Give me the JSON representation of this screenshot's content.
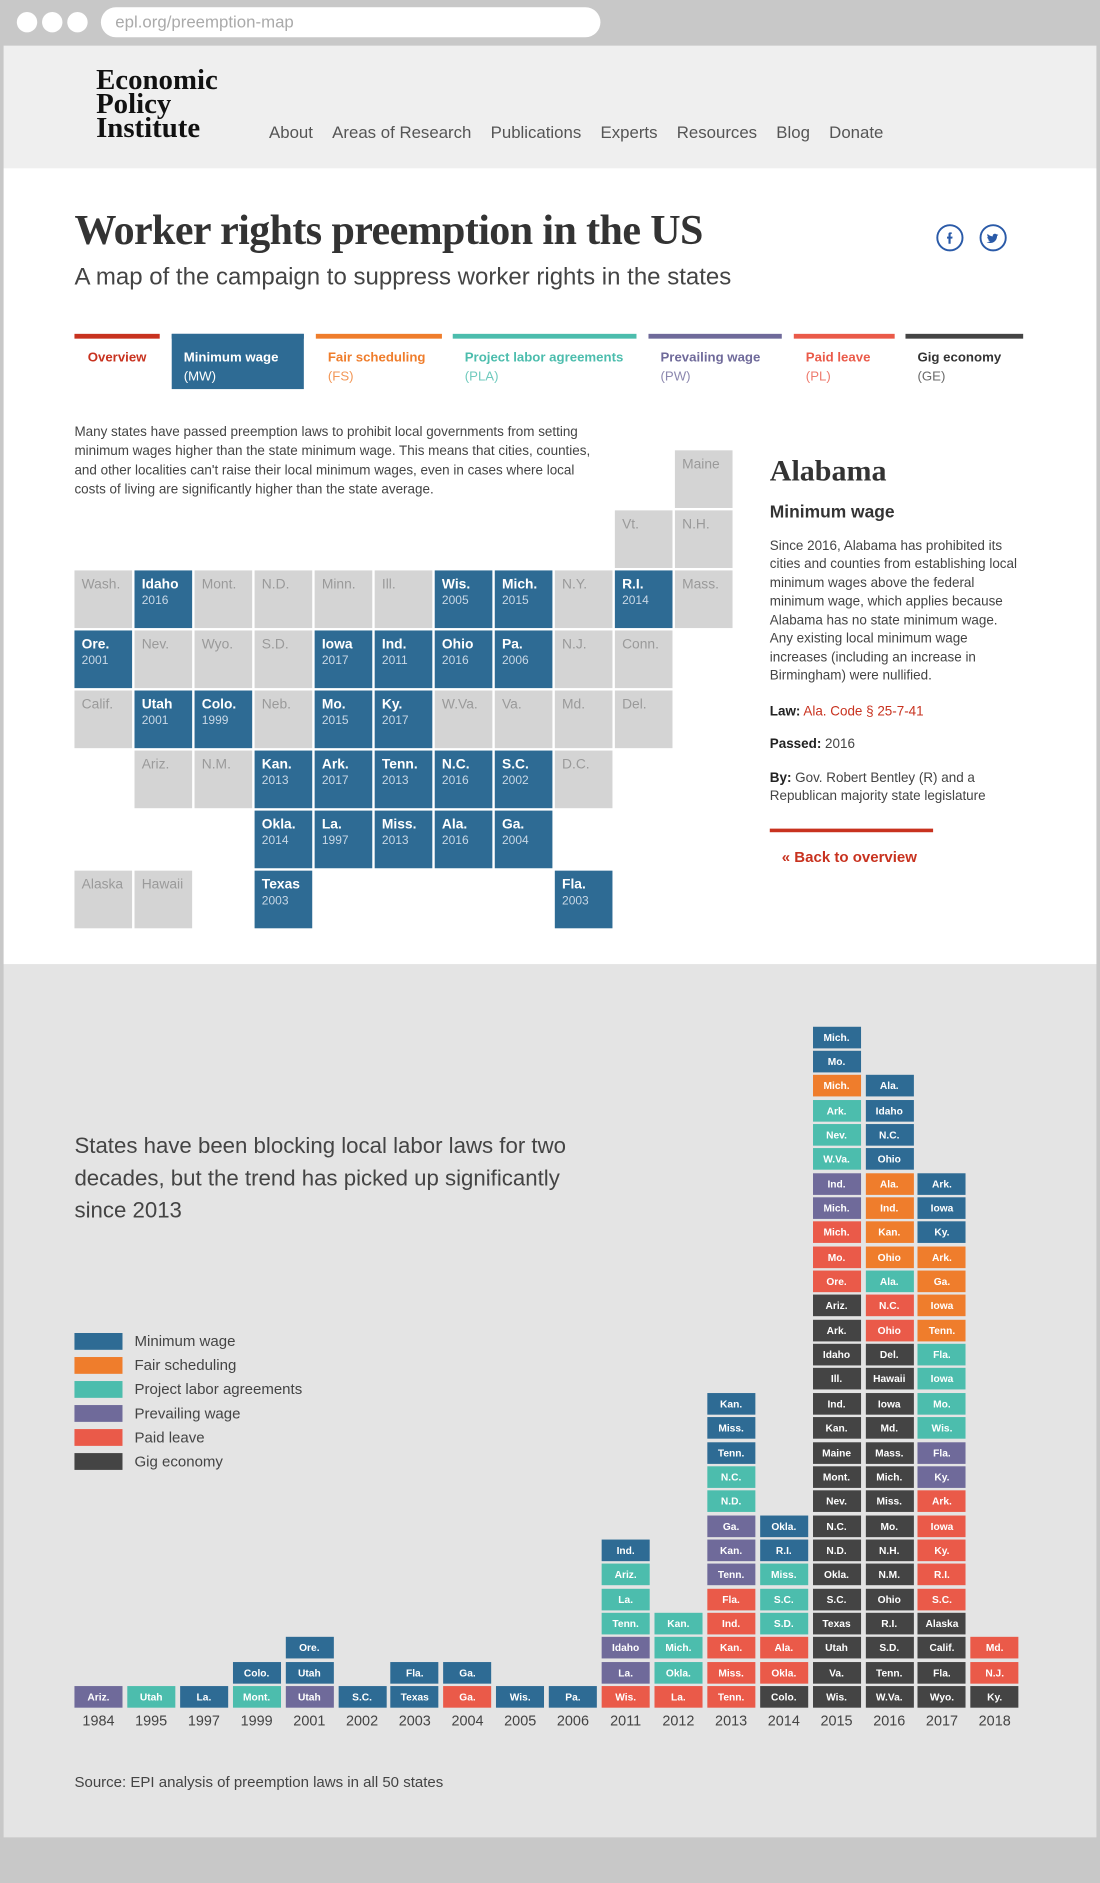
{
  "browser": {
    "url": "epl.org/preemption-map"
  },
  "nav": {
    "logo": [
      "Economic",
      "Policy",
      "Institute"
    ],
    "links": [
      "About",
      "Areas of Research",
      "Publications",
      "Experts",
      "Resources",
      "Blog",
      "Donate"
    ]
  },
  "header": {
    "title": "Worker rights preemption in the US",
    "subtitle": "A map of the campaign to suppress worker rights in the states"
  },
  "tabs": [
    {
      "name": "Overview",
      "color": "#c8321f"
    },
    {
      "name": "Minimum wage",
      "abbr": "(MW)",
      "color": "#2e6b94"
    },
    {
      "name": "Fair scheduling",
      "abbr": "(FS)",
      "color": "#ef7d2c"
    },
    {
      "name": "Project labor agreements",
      "abbr": "(PLA)",
      "color": "#4cbdad"
    },
    {
      "name": "Prevailing wage",
      "abbr": "(PW)",
      "color": "#6f6a9a"
    },
    {
      "name": "Paid leave",
      "abbr": "(PL)",
      "color": "#ea5a49"
    },
    {
      "name": "Gig economy",
      "abbr": "(GE)",
      "color": "#444444"
    }
  ],
  "map": {
    "intro": "Many states have passed preemption laws to prohibit local governments from setting minimum wages higher than the state minimum wage. This means that cities, counties, and other localities can't raise their local minimum wages, even in cases where local costs of living are significantly higher than the state average.",
    "rows": [
      [
        null,
        null,
        null,
        null,
        null,
        null,
        null,
        null,
        null,
        null,
        [
          "Maine"
        ]
      ],
      [
        null,
        null,
        null,
        null,
        null,
        null,
        null,
        null,
        null,
        [
          "Vt."
        ],
        [
          "N.H."
        ]
      ],
      [
        [
          "Wash."
        ],
        [
          "Idaho",
          2016
        ],
        [
          "Mont."
        ],
        [
          "N.D."
        ],
        [
          "Minn."
        ],
        [
          "Ill."
        ],
        [
          "Wis.",
          2005
        ],
        [
          "Mich.",
          2015
        ],
        [
          "N.Y."
        ],
        [
          "R.I.",
          2014
        ],
        [
          "Mass."
        ]
      ],
      [
        [
          "Ore.",
          2001
        ],
        [
          "Nev."
        ],
        [
          "Wyo."
        ],
        [
          "S.D."
        ],
        [
          "Iowa",
          2017
        ],
        [
          "Ind.",
          2011
        ],
        [
          "Ohio",
          2016
        ],
        [
          "Pa.",
          2006
        ],
        [
          "N.J."
        ],
        [
          "Conn."
        ]
      ],
      [
        [
          "Calif."
        ],
        [
          "Utah",
          2001
        ],
        [
          "Colo.",
          1999
        ],
        [
          "Neb."
        ],
        [
          "Mo.",
          2015
        ],
        [
          "Ky.",
          2017
        ],
        [
          "W.Va."
        ],
        [
          "Va."
        ],
        [
          "Md."
        ],
        [
          "Del."
        ]
      ],
      [
        null,
        [
          "Ariz."
        ],
        [
          "N.M."
        ],
        [
          "Kan.",
          2013
        ],
        [
          "Ark.",
          2017
        ],
        [
          "Tenn.",
          2013
        ],
        [
          "N.C.",
          2016
        ],
        [
          "S.C.",
          2002
        ],
        [
          "D.C."
        ]
      ],
      [
        null,
        null,
        null,
        [
          "Okla.",
          2014
        ],
        [
          "La.",
          1997
        ],
        [
          "Miss.",
          2013
        ],
        [
          "Ala.",
          2016
        ],
        [
          "Ga.",
          2004
        ]
      ],
      [
        [
          "Alaska"
        ],
        [
          "Hawaii"
        ],
        null,
        [
          "Texas",
          2003
        ],
        null,
        null,
        null,
        null,
        [
          "Fla.",
          2003
        ]
      ]
    ]
  },
  "detail": {
    "state": "Alabama",
    "policy": "Minimum wage",
    "text": "Since 2016, Alabama has prohibited its cities and counties from establishing local minimum wages above the federal minimum wage, which applies because Alabama has no state minimum wage. Any existing local minimum wage increases (including an increase in Birmingham) were nullified.",
    "law_label": "Law:",
    "law": "Ala. Code § 25-7-41",
    "passed_label": "Passed:",
    "passed": "2016",
    "by_label": "By:",
    "by": "Gov. Robert Bentley (R) and a Republican majority state legislature",
    "back": "« Back to overview"
  },
  "chart_data": {
    "type": "tile-stack",
    "title": "States have been blocking local labor laws for two decades, but the trend has picked up significantly since 2013",
    "source": "Source: EPI analysis of preemption laws in all 50 states",
    "series": [
      {
        "name": "Minimum wage",
        "color": "#2e6b94"
      },
      {
        "name": "Fair scheduling",
        "color": "#ef7d2c"
      },
      {
        "name": "Project labor agreements",
        "color": "#4cbdad"
      },
      {
        "name": "Prevailing wage",
        "color": "#6f6a9a"
      },
      {
        "name": "Paid leave",
        "color": "#ea5a49"
      },
      {
        "name": "Gig economy",
        "color": "#444444"
      }
    ],
    "categories": [
      "1984",
      "1995",
      "1997",
      "1999",
      "2001",
      "2002",
      "2003",
      "2004",
      "2005",
      "2006",
      "2011",
      "2012",
      "2013",
      "2014",
      "2015",
      "2016",
      "2017",
      "2018"
    ],
    "stacks": [
      [
        [
          "Ariz.",
          3
        ]
      ],
      [
        [
          "Utah",
          2
        ]
      ],
      [
        [
          "La.",
          0
        ]
      ],
      [
        [
          "Mont.",
          2
        ],
        [
          "Colo.",
          0
        ]
      ],
      [
        [
          "Utah",
          3
        ],
        [
          "Utah",
          0
        ],
        [
          "Ore.",
          0
        ]
      ],
      [
        [
          "S.C.",
          0
        ]
      ],
      [
        [
          "Texas",
          0
        ],
        [
          "Fla.",
          0
        ]
      ],
      [
        [
          "Ga.",
          4
        ],
        [
          "Ga.",
          0
        ]
      ],
      [
        [
          "Wis.",
          0
        ]
      ],
      [
        [
          "Pa.",
          0
        ]
      ],
      [
        [
          "Wis.",
          4
        ],
        [
          "La.",
          3
        ],
        [
          "Idaho",
          3
        ],
        [
          "Tenn.",
          2
        ],
        [
          "La.",
          2
        ],
        [
          "Ariz.",
          2
        ],
        [
          "Ind.",
          0
        ]
      ],
      [
        [
          "La.",
          4
        ],
        [
          "Okla.",
          2
        ],
        [
          "Mich.",
          2
        ],
        [
          "Kan.",
          2
        ]
      ],
      [
        [
          "Tenn.",
          4
        ],
        [
          "Miss.",
          4
        ],
        [
          "Kan.",
          4
        ],
        [
          "Ind.",
          4
        ],
        [
          "Fla.",
          4
        ],
        [
          "Tenn.",
          3
        ],
        [
          "Kan.",
          3
        ],
        [
          "Ga.",
          3
        ],
        [
          "N.D.",
          2
        ],
        [
          "N.C.",
          2
        ],
        [
          "Tenn.",
          0
        ],
        [
          "Miss.",
          0
        ],
        [
          "Kan.",
          0
        ]
      ],
      [
        [
          "Colo.",
          5
        ],
        [
          "Okla.",
          4
        ],
        [
          "Ala.",
          4
        ],
        [
          "S.D.",
          2
        ],
        [
          "S.C.",
          2
        ],
        [
          "Miss.",
          2
        ],
        [
          "R.I.",
          0
        ],
        [
          "Okla.",
          0
        ]
      ],
      [
        [
          "Wis.",
          5
        ],
        [
          "Va.",
          5
        ],
        [
          "Utah",
          5
        ],
        [
          "Texas",
          5
        ],
        [
          "S.C.",
          5
        ],
        [
          "Okla.",
          5
        ],
        [
          "N.D.",
          5
        ],
        [
          "N.C.",
          5
        ],
        [
          "Nev.",
          5
        ],
        [
          "Mont.",
          5
        ],
        [
          "Maine",
          5
        ],
        [
          "Kan.",
          5
        ],
        [
          "Ind.",
          5
        ],
        [
          "Ill.",
          5
        ],
        [
          "Idaho",
          5
        ],
        [
          "Ark.",
          5
        ],
        [
          "Ariz.",
          5
        ],
        [
          "Ore.",
          4
        ],
        [
          "Mo.",
          4
        ],
        [
          "Mich.",
          4
        ],
        [
          "Mich.",
          3
        ],
        [
          "Ind.",
          3
        ],
        [
          "W.Va.",
          2
        ],
        [
          "Nev.",
          2
        ],
        [
          "Ark.",
          2
        ],
        [
          "Mich.",
          1
        ],
        [
          "Mo.",
          0
        ],
        [
          "Mich.",
          0
        ]
      ],
      [
        [
          "W.Va.",
          5
        ],
        [
          "Tenn.",
          5
        ],
        [
          "S.D.",
          5
        ],
        [
          "R.I.",
          5
        ],
        [
          "Ohio",
          5
        ],
        [
          "N.M.",
          5
        ],
        [
          "N.H.",
          5
        ],
        [
          "Mo.",
          5
        ],
        [
          "Miss.",
          5
        ],
        [
          "Mich.",
          5
        ],
        [
          "Mass.",
          5
        ],
        [
          "Md.",
          5
        ],
        [
          "Iowa",
          5
        ],
        [
          "Hawaii",
          5
        ],
        [
          "Del.",
          5
        ],
        [
          "Ohio",
          4
        ],
        [
          "N.C.",
          4
        ],
        [
          "Ala.",
          2
        ],
        [
          "Ohio",
          1
        ],
        [
          "Kan.",
          1
        ],
        [
          "Ind.",
          1
        ],
        [
          "Ala.",
          1
        ],
        [
          "Ohio",
          0
        ],
        [
          "N.C.",
          0
        ],
        [
          "Idaho",
          0
        ],
        [
          "Ala.",
          0
        ]
      ],
      [
        [
          "Wyo.",
          5
        ],
        [
          "Fla.",
          5
        ],
        [
          "Calif.",
          5
        ],
        [
          "Alaska",
          5
        ],
        [
          "S.C.",
          4
        ],
        [
          "R.I.",
          4
        ],
        [
          "Ky.",
          4
        ],
        [
          "Iowa",
          4
        ],
        [
          "Ark.",
          4
        ],
        [
          "Ky.",
          3
        ],
        [
          "Fla.",
          3
        ],
        [
          "Wis.",
          2
        ],
        [
          "Mo.",
          2
        ],
        [
          "Iowa",
          2
        ],
        [
          "Fla.",
          2
        ],
        [
          "Tenn.",
          1
        ],
        [
          "Iowa",
          1
        ],
        [
          "Ga.",
          1
        ],
        [
          "Ark.",
          1
        ],
        [
          "Ky.",
          0
        ],
        [
          "Iowa",
          0
        ],
        [
          "Ark.",
          0
        ]
      ],
      [
        [
          "Ky.",
          5
        ],
        [
          "N.J.",
          4
        ],
        [
          "Md.",
          4
        ]
      ]
    ]
  }
}
